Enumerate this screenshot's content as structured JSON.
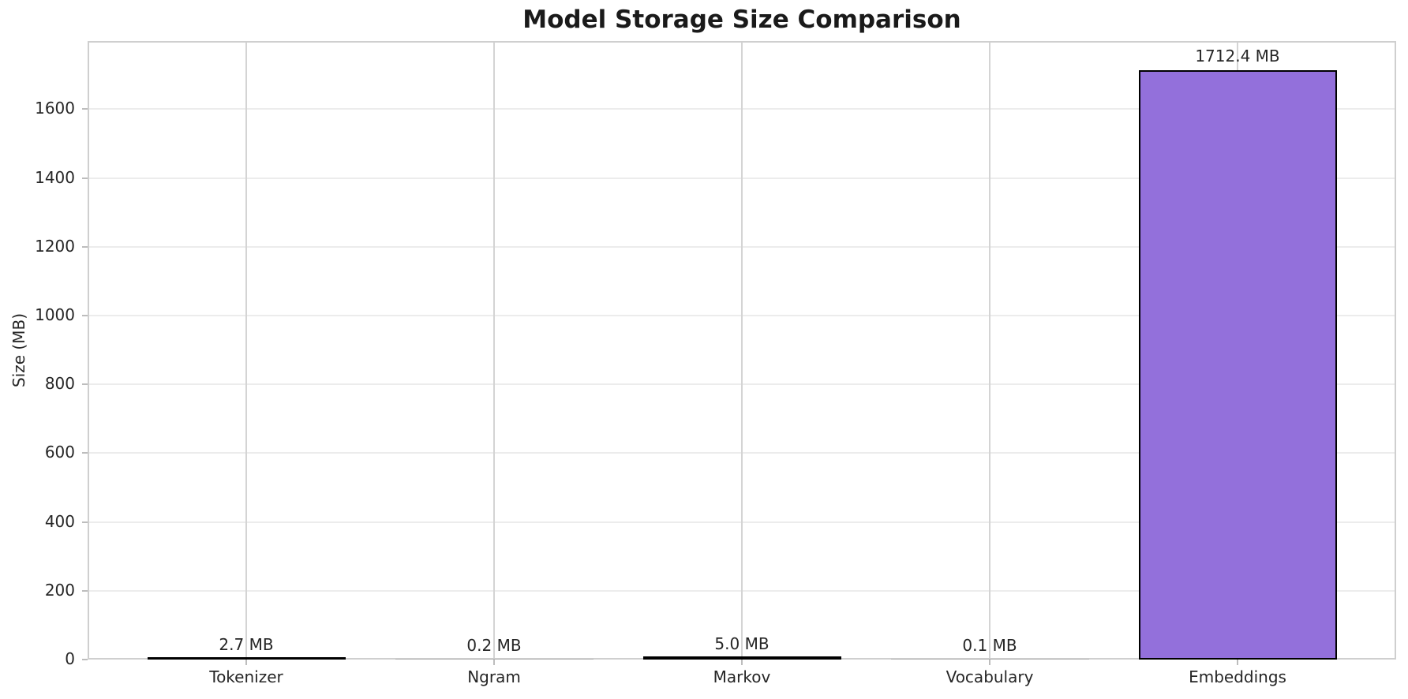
{
  "chart_data": {
    "type": "bar",
    "title": "Model Storage Size Comparison",
    "xlabel": "",
    "ylabel": "Size (MB)",
    "categories": [
      "Tokenizer",
      "Ngram",
      "Markov",
      "Vocabulary",
      "Embeddings"
    ],
    "values": [
      2.7,
      0.2,
      5.0,
      0.1,
      1712.4
    ],
    "bar_labels": [
      "2.7 MB",
      "0.2 MB",
      "5.0 MB",
      "0.1 MB",
      "1712.4 MB"
    ],
    "ylim": [
      0,
      1798
    ],
    "yticks": [
      0,
      200,
      400,
      600,
      800,
      1000,
      1200,
      1400,
      1600
    ],
    "grid": true,
    "legend": "none",
    "colors": {
      "bar_fill": "#9370DB",
      "bar_edge": "#000000",
      "grid_horizontal": "#ececec",
      "grid_vertical": "#d4d4d4",
      "spine": "#cfcfcf",
      "tick_mark": "#bdbdbd",
      "text": "#262626",
      "title": "#1a1a1a",
      "tiny_bar": "#b0b0b0"
    }
  }
}
